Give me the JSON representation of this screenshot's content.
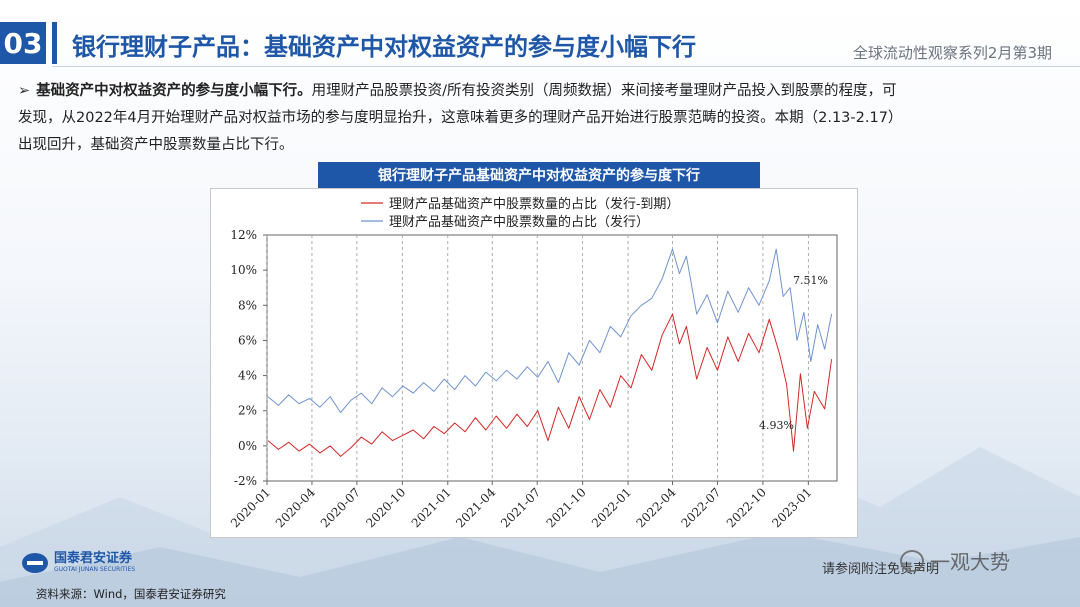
{
  "header": {
    "section_number": "03",
    "title": "银行理财子产品：基础资产中对权益资产的参与度小幅下行",
    "series": "全球流动性观察系列2月第3期"
  },
  "bullet": {
    "arrow": "➢",
    "bold": "基础资产中对权益资产的参与度小幅下行。",
    "line1": "用理财产品股票投资/所有投资类别（周频数据）来间接考量理财产品投入到股票的程度，可",
    "line2": "发现，从2022年4月开始理财产品对权益市场的参与度明显抬升，这意味着更多的理财产品开始进行股票范畴的投资。本期（2.13-2.17）",
    "line3": "出现回升，基础资产中股票数量占比下行。"
  },
  "chart_banner": "银行理财子产品基础资产中对权益资产的参与度下行",
  "footer": {
    "logo_cn": "国泰君安证券",
    "logo_en": "GUOTAI JUNAN SECURITIES",
    "source": "资料来源：Wind，国泰君安证券研究",
    "disclaimer": "请参阅附注免责声明",
    "watermark": "一观大势"
  },
  "colors": {
    "primary": "#1f57a8",
    "series_red": "#d62728",
    "series_blue": "#6f94cf"
  },
  "chart_data": {
    "type": "line",
    "title": "",
    "xlabel": "",
    "ylabel": "",
    "ylim": [
      -2,
      12
    ],
    "yticks": [
      "-2%",
      "0%",
      "2%",
      "4%",
      "6%",
      "8%",
      "10%",
      "12%"
    ],
    "xticks": [
      "2020-01",
      "2020-04",
      "2020-07",
      "2020-10",
      "2021-01",
      "2021-04",
      "2021-07",
      "2021-10",
      "2022-01",
      "2022-04",
      "2022-07",
      "2022-10",
      "2023-01"
    ],
    "legend_position": "top",
    "annotations": [
      "7.51%",
      "4.93%"
    ],
    "series": [
      {
        "name": "理财产品基础资产中股票数量的占比（发行-到期）",
        "color": "#d62728",
        "points": [
          [
            "2020-01-03",
            0.3
          ],
          [
            "2020-01-24",
            -0.2
          ],
          [
            "2020-02-14",
            0.2
          ],
          [
            "2020-03-06",
            -0.3
          ],
          [
            "2020-03-27",
            0.1
          ],
          [
            "2020-04-17",
            -0.4
          ],
          [
            "2020-05-08",
            0.0
          ],
          [
            "2020-05-29",
            -0.6
          ],
          [
            "2020-06-19",
            -0.1
          ],
          [
            "2020-07-10",
            0.5
          ],
          [
            "2020-07-31",
            0.1
          ],
          [
            "2020-08-21",
            0.8
          ],
          [
            "2020-09-11",
            0.3
          ],
          [
            "2020-10-02",
            0.6
          ],
          [
            "2020-10-23",
            0.9
          ],
          [
            "2020-11-13",
            0.4
          ],
          [
            "2020-12-04",
            1.1
          ],
          [
            "2020-12-25",
            0.7
          ],
          [
            "2021-01-15",
            1.3
          ],
          [
            "2021-02-05",
            0.8
          ],
          [
            "2021-02-26",
            1.6
          ],
          [
            "2021-03-19",
            0.9
          ],
          [
            "2021-04-09",
            1.7
          ],
          [
            "2021-04-30",
            1.0
          ],
          [
            "2021-05-21",
            1.8
          ],
          [
            "2021-06-11",
            1.1
          ],
          [
            "2021-07-02",
            2.0
          ],
          [
            "2021-07-23",
            0.3
          ],
          [
            "2021-08-13",
            2.2
          ],
          [
            "2021-09-03",
            1.0
          ],
          [
            "2021-09-24",
            2.8
          ],
          [
            "2021-10-15",
            1.5
          ],
          [
            "2021-11-05",
            3.2
          ],
          [
            "2021-11-26",
            2.2
          ],
          [
            "2021-12-17",
            4.0
          ],
          [
            "2022-01-07",
            3.3
          ],
          [
            "2022-01-28",
            5.2
          ],
          [
            "2022-02-18",
            4.3
          ],
          [
            "2022-03-11",
            6.3
          ],
          [
            "2022-04-01",
            7.5
          ],
          [
            "2022-04-15",
            5.8
          ],
          [
            "2022-04-29",
            6.8
          ],
          [
            "2022-05-20",
            3.8
          ],
          [
            "2022-06-10",
            5.6
          ],
          [
            "2022-07-01",
            4.3
          ],
          [
            "2022-07-22",
            6.2
          ],
          [
            "2022-08-12",
            4.8
          ],
          [
            "2022-09-02",
            6.4
          ],
          [
            "2022-09-23",
            5.3
          ],
          [
            "2022-10-14",
            7.2
          ],
          [
            "2022-11-04",
            5.2
          ],
          [
            "2022-11-18",
            3.5
          ],
          [
            "2022-12-02",
            -0.3
          ],
          [
            "2022-12-16",
            4.1
          ],
          [
            "2022-12-30",
            1.0
          ],
          [
            "2023-01-13",
            3.1
          ],
          [
            "2023-02-03",
            2.1
          ],
          [
            "2023-02-17",
            4.93
          ]
        ]
      },
      {
        "name": "理财产品基础资产中股票数量的占比（发行）",
        "color": "#6f94cf",
        "points": [
          [
            "2020-01-03",
            2.8
          ],
          [
            "2020-01-24",
            2.3
          ],
          [
            "2020-02-14",
            2.9
          ],
          [
            "2020-03-06",
            2.4
          ],
          [
            "2020-03-27",
            2.7
          ],
          [
            "2020-04-17",
            2.2
          ],
          [
            "2020-05-08",
            2.8
          ],
          [
            "2020-05-29",
            1.9
          ],
          [
            "2020-06-19",
            2.6
          ],
          [
            "2020-07-10",
            3.0
          ],
          [
            "2020-07-31",
            2.4
          ],
          [
            "2020-08-21",
            3.3
          ],
          [
            "2020-09-11",
            2.8
          ],
          [
            "2020-10-02",
            3.4
          ],
          [
            "2020-10-23",
            3.0
          ],
          [
            "2020-11-13",
            3.6
          ],
          [
            "2020-12-04",
            3.1
          ],
          [
            "2020-12-25",
            3.8
          ],
          [
            "2021-01-15",
            3.2
          ],
          [
            "2021-02-05",
            4.0
          ],
          [
            "2021-02-26",
            3.4
          ],
          [
            "2021-03-19",
            4.2
          ],
          [
            "2021-04-09",
            3.7
          ],
          [
            "2021-04-30",
            4.3
          ],
          [
            "2021-05-21",
            3.8
          ],
          [
            "2021-06-11",
            4.5
          ],
          [
            "2021-07-02",
            3.9
          ],
          [
            "2021-07-23",
            4.8
          ],
          [
            "2021-08-13",
            3.6
          ],
          [
            "2021-09-03",
            5.3
          ],
          [
            "2021-09-24",
            4.6
          ],
          [
            "2021-10-15",
            6.0
          ],
          [
            "2021-11-05",
            5.3
          ],
          [
            "2021-11-26",
            6.8
          ],
          [
            "2021-12-17",
            6.2
          ],
          [
            "2022-01-07",
            7.4
          ],
          [
            "2022-01-28",
            8.0
          ],
          [
            "2022-02-18",
            8.4
          ],
          [
            "2022-03-11",
            9.5
          ],
          [
            "2022-04-01",
            11.2
          ],
          [
            "2022-04-15",
            9.8
          ],
          [
            "2022-04-29",
            10.8
          ],
          [
            "2022-05-20",
            7.5
          ],
          [
            "2022-06-10",
            8.6
          ],
          [
            "2022-07-01",
            7.0
          ],
          [
            "2022-07-22",
            8.8
          ],
          [
            "2022-08-12",
            7.6
          ],
          [
            "2022-09-02",
            9.0
          ],
          [
            "2022-09-23",
            8.0
          ],
          [
            "2022-10-14",
            9.4
          ],
          [
            "2022-10-28",
            11.2
          ],
          [
            "2022-11-11",
            8.5
          ],
          [
            "2022-11-25",
            9.0
          ],
          [
            "2022-12-09",
            6.0
          ],
          [
            "2022-12-23",
            7.6
          ],
          [
            "2023-01-06",
            4.8
          ],
          [
            "2023-01-20",
            6.9
          ],
          [
            "2023-02-03",
            5.5
          ],
          [
            "2023-02-17",
            7.51
          ]
        ]
      }
    ]
  }
}
